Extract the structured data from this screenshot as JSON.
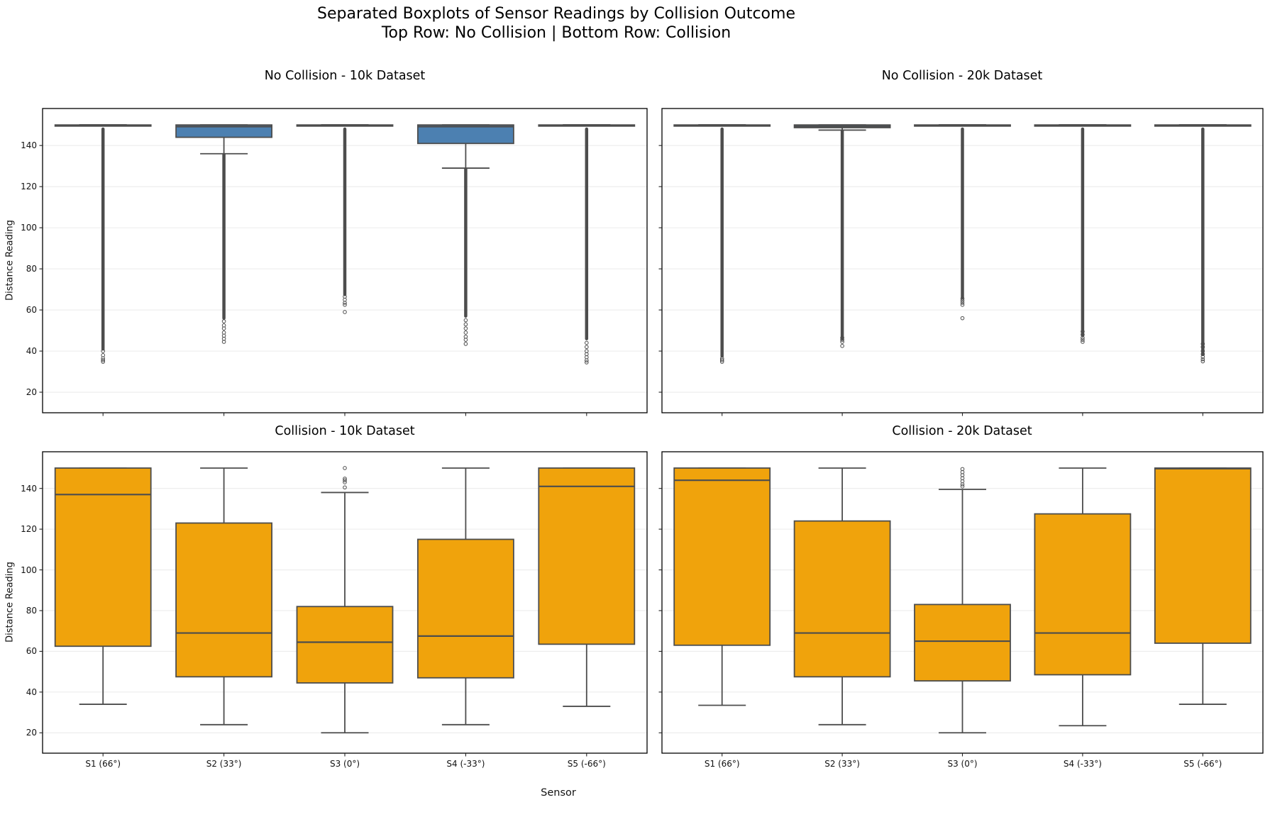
{
  "figure": {
    "suptitle_line1": "Separated Boxplots of Sensor Readings by Collision Outcome",
    "suptitle_line2": "Top Row: No Collision | Bottom Row: Collision"
  },
  "chart_data": {
    "type": "boxplot",
    "grid": "2 rows x 2 cols",
    "xlabel": "Sensor",
    "ylabel": "Distance Reading",
    "categories": [
      "S1 (66°)",
      "S2 (33°)",
      "S3 (0°)",
      "S4 (-33°)",
      "S5 (-66°)"
    ],
    "y_ticks": [
      20,
      40,
      60,
      80,
      100,
      120,
      140
    ],
    "ylim": [
      10,
      158
    ],
    "legend": "none",
    "grid_lines": "horizontal, light gray",
    "colors": {
      "no_collision_fill": "#4C80B1",
      "collision_fill": "#F0A30C",
      "edge": "#4D4D4D",
      "grid": "#ECECEC",
      "axes_border": "#000000"
    },
    "subplots": [
      {
        "id": "no-collision-10k",
        "title": "No Collision - 10k Dataset",
        "row": 0,
        "col": 0,
        "fill": "#4C80B1",
        "boxes": [
          {
            "label": "S1 (66°)",
            "whislo": 150,
            "q1": 149.6,
            "med": 149.8,
            "q3": 150,
            "whishi": 150,
            "outlier_trail": [
              148,
              41
            ],
            "fliers": [
              34.8,
              35.6,
              36.5,
              38,
              40
            ]
          },
          {
            "label": "S2 (33°)",
            "whislo": 136,
            "q1": 144,
            "med": 149.2,
            "q3": 150,
            "whishi": 150,
            "outlier_trail": [
              135.5,
              56
            ],
            "fliers": [
              44.5,
              46,
              47.5,
              49,
              51,
              52.5,
              54.5
            ]
          },
          {
            "label": "S3 (0°)",
            "whislo": 150,
            "q1": 149.6,
            "med": 149.8,
            "q3": 150,
            "whishi": 150,
            "outlier_trail": [
              148,
              67.5
            ],
            "fliers": [
              59,
              62.5,
              63.5,
              65,
              66.5
            ]
          },
          {
            "label": "S4 (-33°)",
            "whislo": 129,
            "q1": 141,
            "med": 149.2,
            "q3": 150,
            "whishi": 150,
            "outlier_trail": [
              128.5,
              57
            ],
            "fliers": [
              43.5,
              45.5,
              47,
              49,
              51,
              53,
              55
            ]
          },
          {
            "label": "S5 (-66°)",
            "whislo": 150,
            "q1": 149.6,
            "med": 149.8,
            "q3": 150,
            "whishi": 150,
            "outlier_trail": [
              148,
              46
            ],
            "fliers": [
              34.5,
              35.5,
              37,
              38.5,
              40,
              42,
              44
            ]
          }
        ]
      },
      {
        "id": "no-collision-20k",
        "title": "No Collision - 20k Dataset",
        "row": 0,
        "col": 1,
        "fill": "#4C80B1",
        "boxes": [
          {
            "label": "S1 (66°)",
            "whislo": 150,
            "q1": 149.6,
            "med": 149.8,
            "q3": 150,
            "whishi": 150,
            "outlier_trail": [
              148,
              37.5
            ],
            "fliers": [
              34.8,
              35.6,
              36.4
            ]
          },
          {
            "label": "S2 (33°)",
            "whislo": 147.5,
            "q1": 148.7,
            "med": 149.3,
            "q3": 150,
            "whishi": 150,
            "outlier_trail": [
              147,
              46
            ],
            "fliers": [
              42.5,
              44.5,
              45.5,
              46.5
            ]
          },
          {
            "label": "S3 (0°)",
            "whislo": 150,
            "q1": 149.6,
            "med": 149.8,
            "q3": 150,
            "whishi": 150,
            "outlier_trail": [
              148,
              66
            ],
            "fliers": [
              56,
              62.5,
              63.5,
              64.5,
              65.5
            ]
          },
          {
            "label": "S4 (-33°)",
            "whislo": 150,
            "q1": 149.6,
            "med": 149.8,
            "q3": 150,
            "whishi": 150,
            "outlier_trail": [
              148,
              47.5
            ],
            "fliers": [
              44.5,
              45.5,
              46.5,
              48,
              49.5
            ]
          },
          {
            "label": "S5 (-66°)",
            "whislo": 150,
            "q1": 149.6,
            "med": 149.8,
            "q3": 150,
            "whishi": 150,
            "outlier_trail": [
              148,
              38.5
            ],
            "fliers": [
              35,
              36,
              37.2,
              38.5,
              40,
              42,
              43.5
            ]
          }
        ]
      },
      {
        "id": "collision-10k",
        "title": "Collision - 10k Dataset",
        "row": 1,
        "col": 0,
        "fill": "#F0A30C",
        "boxes": [
          {
            "label": "S1 (66°)",
            "whislo": 34,
            "q1": 62.5,
            "med": 137,
            "q3": 150,
            "whishi": 150,
            "outlier_trail": null,
            "fliers": []
          },
          {
            "label": "S2 (33°)",
            "whislo": 24,
            "q1": 47.5,
            "med": 69,
            "q3": 123,
            "whishi": 150,
            "outlier_trail": null,
            "fliers": []
          },
          {
            "label": "S3 (0°)",
            "whislo": 20,
            "q1": 44.5,
            "med": 64.5,
            "q3": 82,
            "whishi": 138,
            "outlier_trail": null,
            "fliers": [
              140.5,
              143,
              144,
              144.8,
              150
            ]
          },
          {
            "label": "S4 (-33°)",
            "whislo": 24,
            "q1": 47,
            "med": 67.5,
            "q3": 115,
            "whishi": 150,
            "outlier_trail": null,
            "fliers": []
          },
          {
            "label": "S5 (-66°)",
            "whislo": 33,
            "q1": 63.5,
            "med": 141,
            "q3": 150,
            "whishi": 150,
            "outlier_trail": null,
            "fliers": []
          }
        ]
      },
      {
        "id": "collision-20k",
        "title": "Collision - 20k Dataset",
        "row": 1,
        "col": 1,
        "fill": "#F0A30C",
        "boxes": [
          {
            "label": "S1 (66°)",
            "whislo": 33.5,
            "q1": 63,
            "med": 144,
            "q3": 150,
            "whishi": 150,
            "outlier_trail": null,
            "fliers": []
          },
          {
            "label": "S2 (33°)",
            "whislo": 24,
            "q1": 47.5,
            "med": 69,
            "q3": 124,
            "whishi": 150,
            "outlier_trail": null,
            "fliers": []
          },
          {
            "label": "S3 (0°)",
            "whislo": 20,
            "q1": 45.5,
            "med": 65,
            "q3": 83,
            "whishi": 139.5,
            "outlier_trail": null,
            "fliers": [
              141,
              142,
              143.5,
              145,
              146.5,
              148,
              149.5
            ]
          },
          {
            "label": "S4 (-33°)",
            "whislo": 23.5,
            "q1": 48.5,
            "med": 69,
            "q3": 127.5,
            "whishi": 150,
            "outlier_trail": null,
            "fliers": []
          },
          {
            "label": "S5 (-66°)",
            "whislo": 34,
            "q1": 64,
            "med": 149.7,
            "q3": 150,
            "whishi": 150,
            "outlier_trail": null,
            "fliers": []
          }
        ]
      }
    ]
  }
}
